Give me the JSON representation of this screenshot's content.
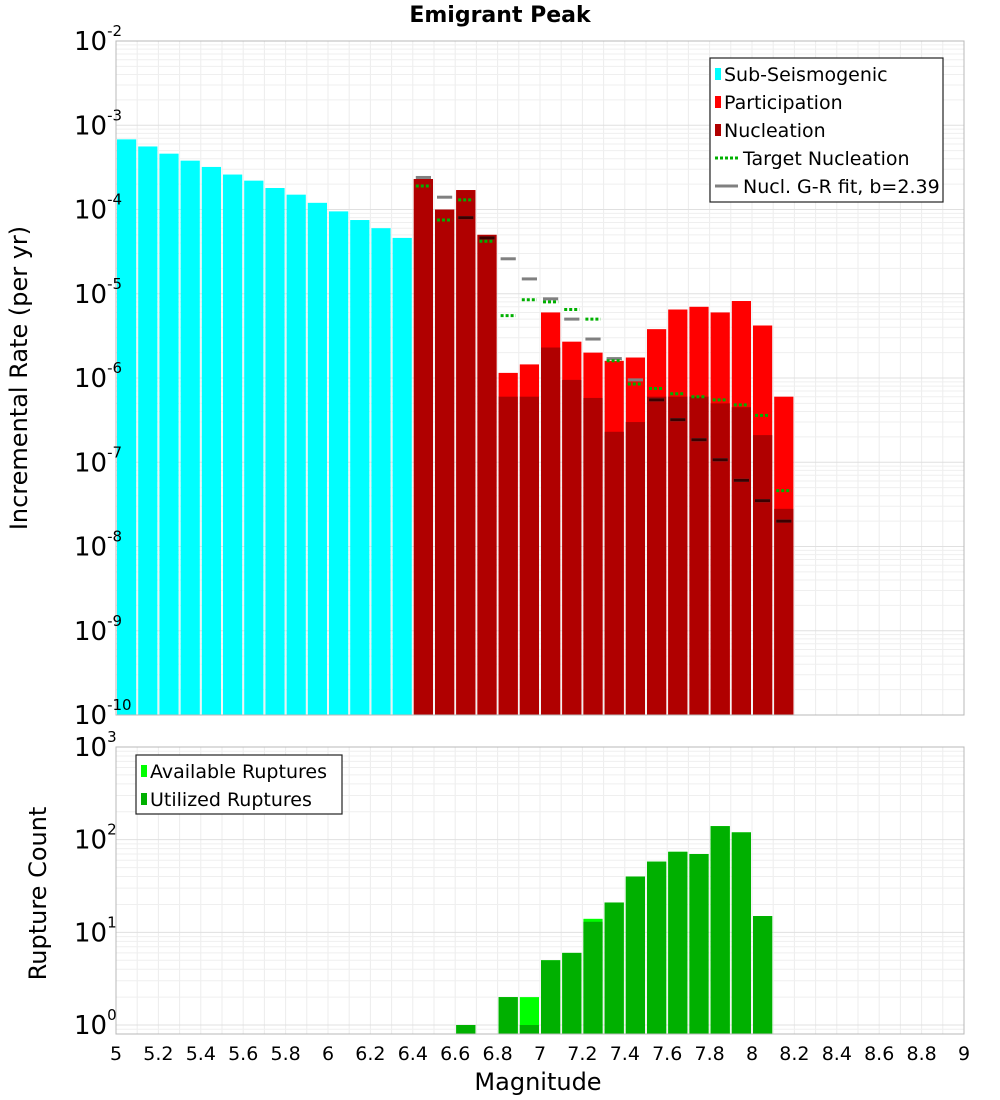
{
  "chart_data": [
    {
      "type": "bar",
      "title": "Emigrant Peak",
      "ylabel": "Incremental Rate (per yr)",
      "yscale": "log",
      "ylim": [
        1e-10,
        0.01
      ],
      "yticks": [
        {
          "base": "10",
          "exp": "-10"
        },
        {
          "base": "10",
          "exp": "-9"
        },
        {
          "base": "10",
          "exp": "-8"
        },
        {
          "base": "10",
          "exp": "-7"
        },
        {
          "base": "10",
          "exp": "-6"
        },
        {
          "base": "10",
          "exp": "-5"
        },
        {
          "base": "10",
          "exp": "-4"
        },
        {
          "base": "10",
          "exp": "-3"
        },
        {
          "base": "10",
          "exp": "-2"
        }
      ],
      "xlim": [
        5,
        9
      ],
      "legend_position": "top-right",
      "bar_width": 0.1,
      "colors": {
        "sub_seismogenic": "#00ffff",
        "participation": "#ff0000",
        "nucleation": "#b00000",
        "target_nucleation": "#00b000",
        "gr_fit": "#808080"
      },
      "series": [
        {
          "name": "Sub-Seismogenic",
          "style": "bar",
          "x": [
            5.05,
            5.15,
            5.25,
            5.35,
            5.45,
            5.55,
            5.65,
            5.75,
            5.85,
            5.95,
            6.05,
            6.15,
            6.25,
            6.35
          ],
          "values": [
            0.00068,
            0.00056,
            0.00046,
            0.00038,
            0.00032,
            0.00026,
            0.00022,
            0.00018,
            0.00015,
            0.00012,
            9.5e-05,
            7.5e-05,
            6e-05,
            4.6e-05
          ]
        },
        {
          "name": "Participation",
          "style": "bar",
          "x": [
            6.45,
            6.55,
            6.65,
            6.75,
            6.85,
            6.95,
            7.05,
            7.15,
            7.25,
            7.35,
            7.45,
            7.55,
            7.65,
            7.75,
            7.85,
            7.95,
            8.05,
            8.15
          ],
          "values": [
            0.00023,
            0.0001,
            0.00017,
            5e-05,
            1.15e-06,
            1.45e-06,
            6e-06,
            2.7e-06,
            2e-06,
            1.6e-06,
            1.75e-06,
            3.8e-06,
            6.5e-06,
            7e-06,
            6e-06,
            8.2e-06,
            4.2e-06,
            6e-07
          ]
        },
        {
          "name": "Nucleation",
          "style": "bar",
          "x": [
            6.45,
            6.55,
            6.65,
            6.75,
            6.85,
            6.95,
            7.05,
            7.15,
            7.25,
            7.35,
            7.45,
            7.55,
            7.65,
            7.75,
            7.85,
            7.95,
            8.05,
            8.15
          ],
          "values": [
            0.00023,
            0.0001,
            0.00017,
            5e-05,
            6e-07,
            6e-07,
            2.3e-06,
            9.5e-07,
            5.8e-07,
            2.3e-07,
            3e-07,
            6e-07,
            6e-07,
            6e-07,
            5e-07,
            4.5e-07,
            2.1e-07,
            2.8e-08
          ]
        },
        {
          "name": "Target Nucleation",
          "style": "dotted-step",
          "x": [
            6.45,
            6.55,
            6.65,
            6.75,
            6.85,
            6.95,
            7.05,
            7.15,
            7.25,
            7.35,
            7.45,
            7.55,
            7.65,
            7.75,
            7.85,
            7.95,
            8.05,
            8.15
          ],
          "values": [
            0.00019,
            7.5e-05,
            0.00013,
            4.2e-05,
            5.5e-06,
            8.5e-06,
            8e-06,
            6.5e-06,
            5e-06,
            1.6e-06,
            8.5e-07,
            7.5e-07,
            6.5e-07,
            6e-07,
            5.5e-07,
            4.8e-07,
            3.6e-07,
            4.6e-08
          ]
        },
        {
          "name": "Nucl. G-R fit, b=2.39",
          "style": "step",
          "x": [
            6.45,
            6.55,
            6.65,
            6.75,
            6.85,
            6.95,
            7.05,
            7.15,
            7.25,
            7.35,
            7.45,
            7.55,
            7.65,
            7.75,
            7.85,
            7.95,
            8.05,
            8.15
          ],
          "values": [
            0.00024,
            0.00014,
            8e-05,
            4.6e-05,
            2.6e-05,
            1.5e-05,
            8.7e-06,
            5e-06,
            2.9e-06,
            1.7e-06,
            9.5e-07,
            5.5e-07,
            3.2e-07,
            1.85e-07,
            1.07e-07,
            6.1e-08,
            3.5e-08,
            2e-08
          ]
        }
      ]
    },
    {
      "type": "bar",
      "ylabel": "Rupture Count",
      "xlabel": "Magnitude",
      "yscale": "log",
      "ylim": [
        0.8,
        1000
      ],
      "yticks": [
        {
          "base": "10",
          "exp": "0"
        },
        {
          "base": "10",
          "exp": "1"
        },
        {
          "base": "10",
          "exp": "2"
        },
        {
          "base": "10",
          "exp": "3"
        }
      ],
      "xlim": [
        5,
        9
      ],
      "xticks": [
        "5",
        "5.2",
        "5.4",
        "5.6",
        "5.8",
        "6",
        "6.2",
        "6.4",
        "6.6",
        "6.8",
        "7",
        "7.2",
        "7.4",
        "7.6",
        "7.8",
        "8",
        "8.2",
        "8.4",
        "8.6",
        "8.8",
        "9"
      ],
      "legend_position": "top-left",
      "bar_width": 0.1,
      "colors": {
        "available": "#00ff00",
        "utilized": "#00b000"
      },
      "series": [
        {
          "name": "Available Ruptures",
          "x": [
            6.65,
            6.85,
            6.95,
            7.05,
            7.15,
            7.25,
            7.35,
            7.45,
            7.55,
            7.65,
            7.75,
            7.85,
            7.95,
            8.05
          ],
          "values": [
            1,
            2,
            2,
            5,
            6,
            14,
            21,
            40,
            58,
            74,
            70,
            140,
            120,
            15
          ]
        },
        {
          "name": "Utilized Ruptures",
          "x": [
            6.65,
            6.85,
            6.95,
            7.05,
            7.15,
            7.25,
            7.35,
            7.45,
            7.55,
            7.65,
            7.75,
            7.85,
            7.95,
            8.05
          ],
          "values": [
            1,
            2,
            1,
            5,
            6,
            13,
            21,
            40,
            58,
            74,
            70,
            140,
            120,
            15
          ]
        }
      ]
    }
  ]
}
